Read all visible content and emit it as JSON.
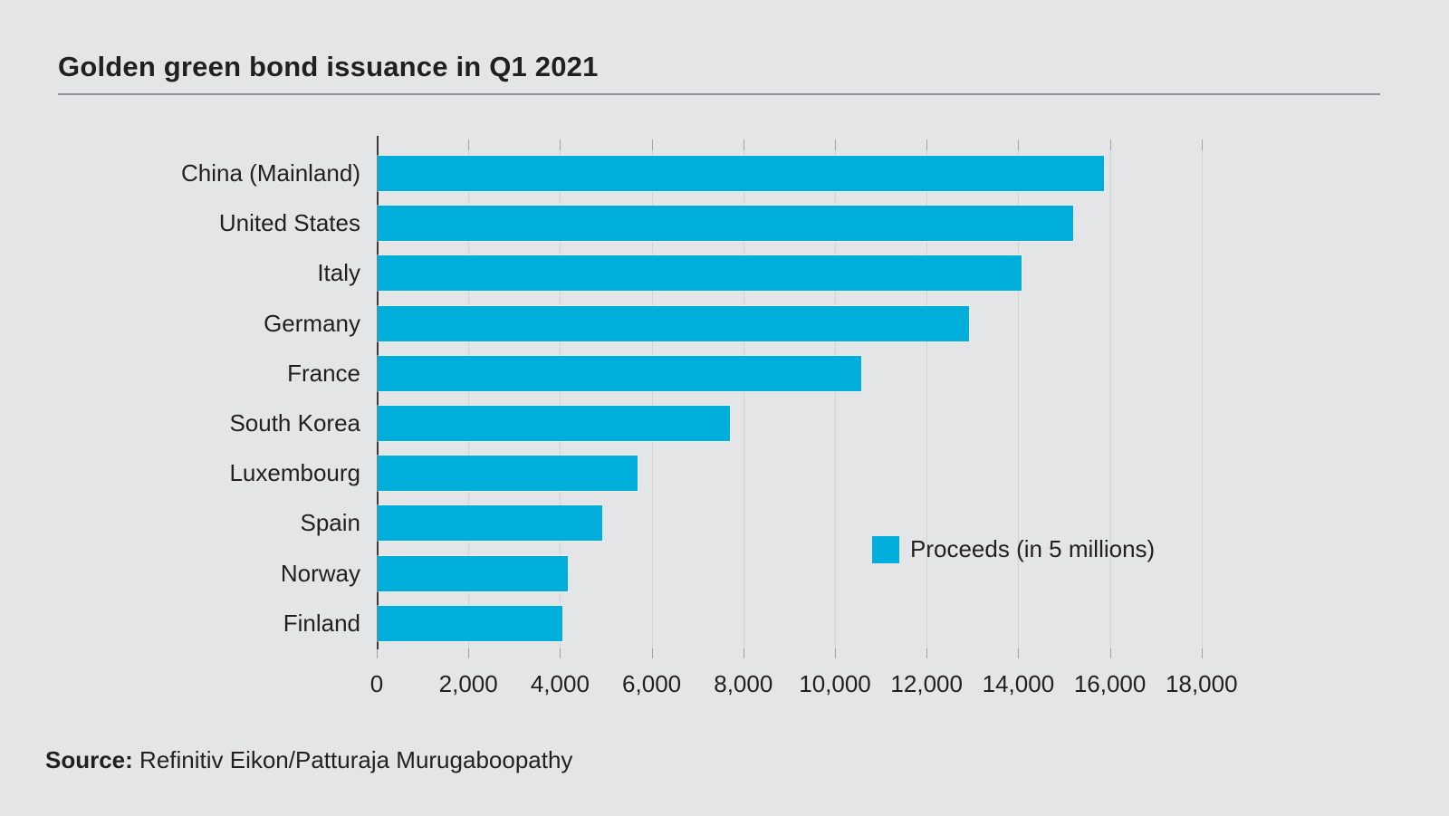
{
  "header": {
    "title": "Golden green bond issuance in Q1 2021"
  },
  "legend": {
    "label": "Proceeds (in 5 millions)",
    "swatch_color": "#00aedb"
  },
  "footer": {
    "source_prefix": "Source:",
    "source_text": " Refinitiv Eikon/Patturaja Murugaboopathy"
  },
  "colors": {
    "background": "#e4e5e7",
    "bar": "#00aedb",
    "text": "#231f20",
    "gridline": "#d2d3d5",
    "tick": "#a3a4a7",
    "axis_line": "#3a3a3c",
    "title_rule": "#919295"
  },
  "chart_data": {
    "type": "bar",
    "orientation": "horizontal",
    "title": "Golden green bond issuance in Q1 2021",
    "categories": [
      "China (Mainland)",
      "United States",
      "Italy",
      "Germany",
      "France",
      "South Korea",
      "Luxembourg",
      "Spain",
      "Norway",
      "Finland"
    ],
    "values": [
      15850,
      15180,
      14050,
      12900,
      10550,
      7680,
      5670,
      4900,
      4160,
      4040
    ],
    "series_name": "Proceeds (in 5 millions)",
    "xlabel": "",
    "ylabel": "",
    "xlim": [
      0,
      18500
    ],
    "xticks": [
      0,
      2000,
      4000,
      6000,
      8000,
      10000,
      12000,
      14000,
      16000,
      18000
    ],
    "xtick_labels": [
      "0",
      "2,000",
      "4,000",
      "6,000",
      "8,000",
      "10,000",
      "12,000",
      "14,000",
      "16,000",
      "18,000"
    ],
    "grid": true,
    "legend_position": "middle-right",
    "source": "Source: Refinitiv Eikon/Patturaja Murugaboopathy"
  }
}
